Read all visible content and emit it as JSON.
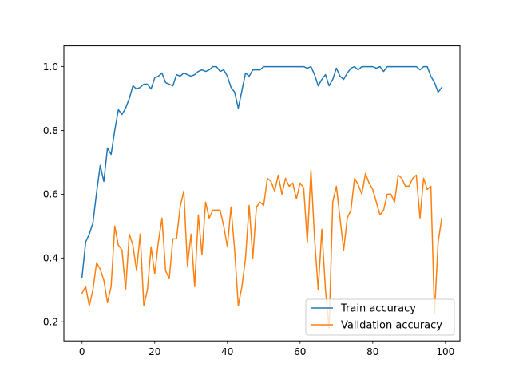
{
  "chart_data": {
    "type": "line",
    "title": "",
    "xlabel": "",
    "ylabel": "",
    "xlim": [
      -5,
      104
    ],
    "ylim": [
      0.14,
      1.065
    ],
    "xticks": [
      0,
      20,
      40,
      60,
      80,
      100
    ],
    "yticks": [
      0.2,
      0.4,
      0.6,
      0.8,
      1.0
    ],
    "xtick_labels": [
      "0",
      "20",
      "40",
      "60",
      "80",
      "100"
    ],
    "ytick_labels": [
      "0.2",
      "0.4",
      "0.6",
      "0.8",
      "1.0"
    ],
    "grid": false,
    "legend_position": "lower right",
    "x": [
      0,
      1,
      2,
      3,
      4,
      5,
      6,
      7,
      8,
      9,
      10,
      11,
      12,
      13,
      14,
      15,
      16,
      17,
      18,
      19,
      20,
      21,
      22,
      23,
      24,
      25,
      26,
      27,
      28,
      29,
      30,
      31,
      32,
      33,
      34,
      35,
      36,
      37,
      38,
      39,
      40,
      41,
      42,
      43,
      44,
      45,
      46,
      47,
      48,
      49,
      50,
      51,
      52,
      53,
      54,
      55,
      56,
      57,
      58,
      59,
      60,
      61,
      62,
      63,
      64,
      65,
      66,
      67,
      68,
      69,
      70,
      71,
      72,
      73,
      74,
      75,
      76,
      77,
      78,
      79,
      80,
      81,
      82,
      83,
      84,
      85,
      86,
      87,
      88,
      89,
      90,
      91,
      92,
      93,
      94,
      95,
      96,
      97,
      98,
      99
    ],
    "series": [
      {
        "name": "Train accuracy",
        "color": "#1f77b4",
        "values": [
          0.34,
          0.45,
          0.475,
          0.51,
          0.605,
          0.69,
          0.64,
          0.745,
          0.725,
          0.8,
          0.865,
          0.85,
          0.87,
          0.9,
          0.94,
          0.93,
          0.935,
          0.945,
          0.945,
          0.93,
          0.965,
          0.97,
          0.98,
          0.95,
          0.945,
          0.94,
          0.975,
          0.97,
          0.98,
          0.975,
          0.97,
          0.975,
          0.985,
          0.99,
          0.985,
          0.99,
          1.0,
          1.0,
          0.985,
          0.99,
          0.97,
          0.935,
          0.92,
          0.87,
          0.925,
          0.98,
          0.97,
          0.99,
          0.99,
          0.99,
          1.0,
          1.0,
          1.0,
          1.0,
          1.0,
          1.0,
          1.0,
          1.0,
          1.0,
          1.0,
          1.0,
          1.0,
          0.995,
          1.0,
          0.975,
          0.94,
          0.96,
          0.975,
          0.94,
          0.96,
          0.995,
          0.97,
          0.96,
          0.98,
          0.995,
          1.0,
          0.99,
          1.0,
          1.0,
          1.0,
          1.0,
          0.995,
          1.0,
          0.985,
          1.0,
          1.0,
          1.0,
          1.0,
          1.0,
          1.0,
          1.0,
          1.0,
          1.0,
          0.99,
          1.0,
          1.0,
          0.97,
          0.95,
          0.92,
          0.935
        ]
      },
      {
        "name": "Validation accuracy",
        "color": "#ff7f0e",
        "values": [
          0.29,
          0.31,
          0.25,
          0.3,
          0.385,
          0.365,
          0.33,
          0.26,
          0.31,
          0.5,
          0.44,
          0.425,
          0.3,
          0.475,
          0.44,
          0.36,
          0.475,
          0.25,
          0.3,
          0.435,
          0.35,
          0.45,
          0.525,
          0.36,
          0.335,
          0.46,
          0.46,
          0.56,
          0.61,
          0.375,
          0.475,
          0.31,
          0.535,
          0.41,
          0.575,
          0.525,
          0.55,
          0.55,
          0.55,
          0.5,
          0.435,
          0.56,
          0.425,
          0.25,
          0.31,
          0.4,
          0.565,
          0.4,
          0.56,
          0.575,
          0.565,
          0.65,
          0.64,
          0.61,
          0.66,
          0.6,
          0.65,
          0.625,
          0.635,
          0.585,
          0.635,
          0.62,
          0.45,
          0.675,
          0.46,
          0.3,
          0.49,
          0.3,
          0.18,
          0.575,
          0.625,
          0.525,
          0.425,
          0.525,
          0.55,
          0.65,
          0.63,
          0.6,
          0.665,
          0.635,
          0.615,
          0.575,
          0.535,
          0.55,
          0.6,
          0.6,
          0.575,
          0.66,
          0.65,
          0.625,
          0.625,
          0.65,
          0.66,
          0.525,
          0.65,
          0.615,
          0.625,
          0.225,
          0.45,
          0.525
        ]
      }
    ]
  }
}
